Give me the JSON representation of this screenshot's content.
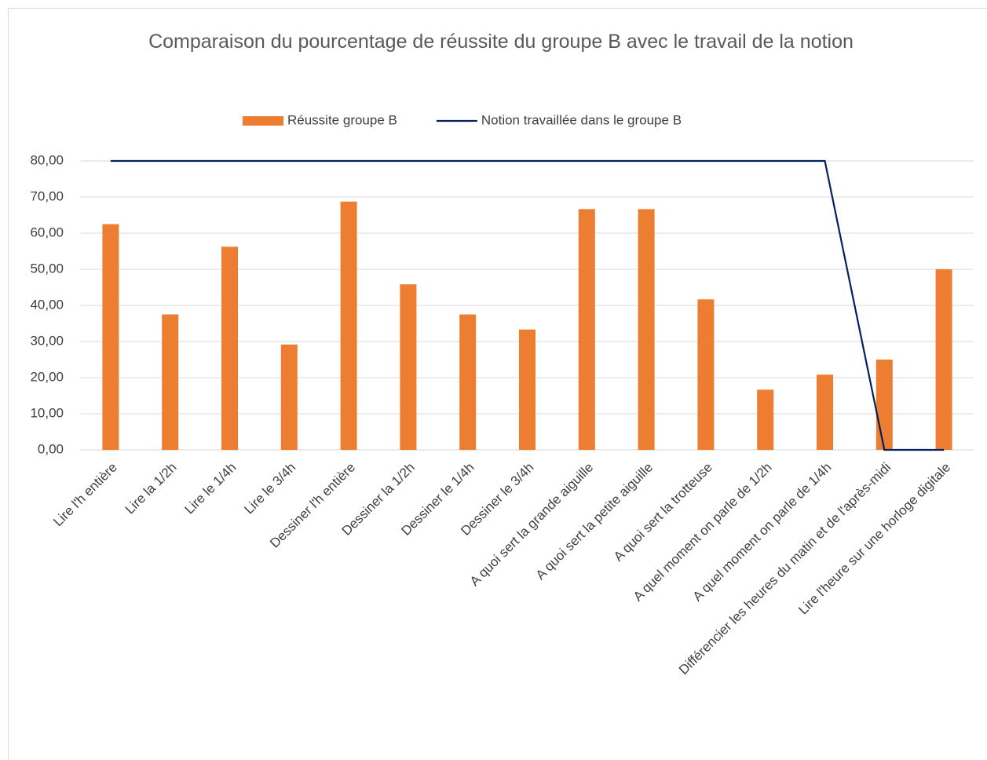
{
  "chart_data": {
    "type": "bar",
    "title": "Comparaison du pourcentage de réussite du groupe B avec le travail de la notion",
    "categories": [
      "Lire l'h entière",
      "Lire la 1/2h",
      "Lire le 1/4h",
      "Lire le 3/4h",
      "Dessiner l'h entière",
      "Dessiner la 1/2h",
      "Dessiner le 1/4h",
      "Dessiner le 3/4h",
      "A quoi sert la grande aiguille",
      "A quoi sert la petite aiguille",
      "A quoi sert la trotteuse",
      "A quel moment on parle de 1/2h",
      "A quel moment on parle de 1/4h",
      "Différencier les heures du matin et de l'après-midi",
      "Lire l'heure sur une horloge digitale"
    ],
    "series": [
      {
        "name": "Réussite groupe B",
        "type": "bar",
        "color": "#ed7d31",
        "values": [
          62.5,
          37.5,
          56.25,
          29.17,
          68.75,
          45.83,
          37.5,
          33.33,
          66.67,
          66.67,
          41.67,
          16.67,
          20.83,
          25,
          50
        ]
      },
      {
        "name": "Notion travaillée dans le groupe B",
        "type": "line",
        "color": "#002060",
        "values": [
          80,
          80,
          80,
          80,
          80,
          80,
          80,
          80,
          80,
          80,
          80,
          80,
          80,
          0,
          0
        ]
      }
    ],
    "ylim": [
      0,
      80
    ],
    "yticks": [
      {
        "value": 0,
        "label": "0,00"
      },
      {
        "value": 10,
        "label": "10,00"
      },
      {
        "value": 20,
        "label": "20,00"
      },
      {
        "value": 30,
        "label": "30,00"
      },
      {
        "value": 40,
        "label": "40,00"
      },
      {
        "value": 50,
        "label": "50,00"
      },
      {
        "value": 60,
        "label": "60,00"
      },
      {
        "value": 70,
        "label": "70,00"
      },
      {
        "value": 80,
        "label": "80,00"
      }
    ],
    "grid": true,
    "legend": "top"
  }
}
